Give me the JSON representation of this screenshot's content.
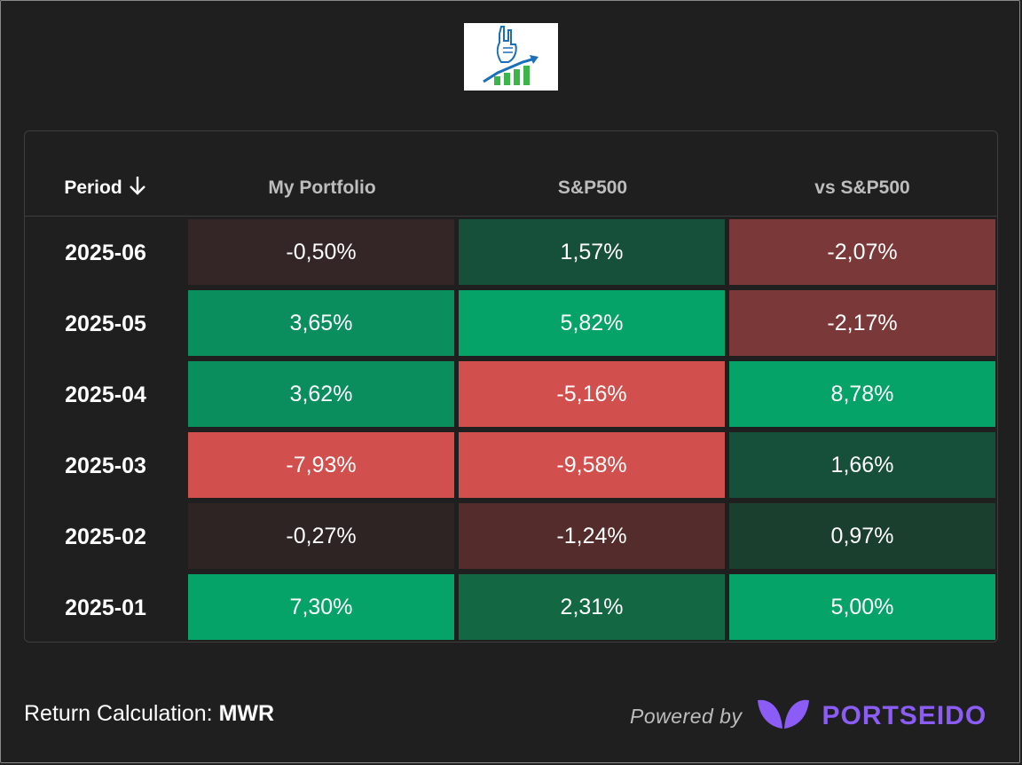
{
  "header": {
    "period_label": "Period",
    "col_portfolio": "My Portfolio",
    "col_sp500": "S&P500",
    "col_vs": "vs S&P500"
  },
  "rows": [
    {
      "period": "2025-06",
      "portfolio": "-0,50%",
      "sp500": "1,57%",
      "vs": "-2,07%"
    },
    {
      "period": "2025-05",
      "portfolio": "3,65%",
      "sp500": "5,82%",
      "vs": "-2,17%"
    },
    {
      "period": "2025-04",
      "portfolio": "3,62%",
      "sp500": "-5,16%",
      "vs": "8,78%"
    },
    {
      "period": "2025-03",
      "portfolio": "-7,93%",
      "sp500": "-9,58%",
      "vs": "1,66%"
    },
    {
      "period": "2025-02",
      "portfolio": "-0,27%",
      "sp500": "-1,24%",
      "vs": "0,97%"
    },
    {
      "period": "2025-01",
      "portfolio": "7,30%",
      "sp500": "2,31%",
      "vs": "5,00%"
    }
  ],
  "cell_colors": [
    [
      "#342626",
      "#17503a",
      "#7a3838"
    ],
    [
      "#0a8e5e",
      "#05a367",
      "#7a3838"
    ],
    [
      "#0a8e5e",
      "#d14f4c",
      "#05a367"
    ],
    [
      "#d14f4c",
      "#d14f4c",
      "#17503a"
    ],
    [
      "#2e2424",
      "#542c2c",
      "#1a3f2f"
    ],
    [
      "#05a367",
      "#136843",
      "#05a367"
    ]
  ],
  "footer": {
    "return_label": "Return Calculation:",
    "return_value": "MWR",
    "powered_by": "Powered by",
    "brand": "PORTSEIDO"
  },
  "colors": {
    "brand": "#8b5cf6",
    "background": "#1f1f1f"
  },
  "icons": {
    "logo": "rock-hand-growth-chart-logo",
    "sort": "arrow-down-icon",
    "brand": "portseido-leaf-icon"
  }
}
